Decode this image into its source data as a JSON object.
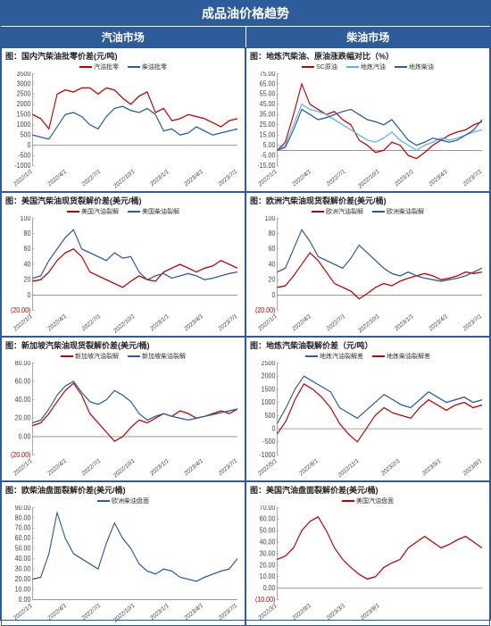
{
  "page": {
    "main_title": "成品油价格趋势",
    "left_header": "汽油市场",
    "right_header": "柴油市场"
  },
  "colors": {
    "frame": "#2e5c9a",
    "header_bg": "#2e5c9a",
    "header_fg": "#ffffff",
    "series_red": "#c00000",
    "series_blue": "#2e5c9a",
    "series_cyan": "#5eb3e4",
    "axis": "#888888",
    "grid": "#d9d9d9",
    "bg": "#ffffff"
  },
  "xaxes": {
    "std": [
      "2022/1/1",
      "2022/4/1",
      "2022/7/1",
      "2022/10/1",
      "2023/1/1",
      "2023/4/1",
      "2023/7/1"
    ],
    "r3": [
      "2022/5/1",
      "2022/8/1",
      "2022/11/1",
      "2023/2/1",
      "2023/5/1",
      "2023/8/1"
    ],
    "r5": [
      "2022/3/1",
      "2022/9/1",
      "2023/3/1",
      "2023/9/1",
      "",
      "",
      ""
    ],
    "l5": [
      "2022/1/1",
      "2022/4/1",
      "2022/7/1",
      "2022/10/1",
      "2023/1/1",
      "2023/4/1",
      "2023/7/1"
    ]
  },
  "charts": [
    {
      "id": "l1",
      "title": "图：国内汽柴油批零价差(元/吨)",
      "legend": [
        [
          "汽油批零",
          "red"
        ],
        [
          "柴油批零",
          "blue"
        ]
      ],
      "ylim": [
        -1000,
        3500
      ],
      "ytick_step": 500,
      "xkey": "std",
      "series": [
        [
          "red",
          [
            1500,
            1300,
            800,
            2500,
            2700,
            2600,
            2800,
            2800,
            2500,
            2800,
            2700,
            2300,
            2000,
            2400,
            2600,
            1600,
            1800,
            1200,
            1300,
            1500,
            1400,
            1300,
            1100,
            900,
            1200,
            1300
          ]
        ],
        [
          "blue",
          [
            500,
            400,
            300,
            900,
            1500,
            1600,
            1400,
            1000,
            800,
            1400,
            1800,
            1900,
            1700,
            1600,
            1800,
            1500,
            700,
            800,
            500,
            600,
            900,
            700,
            500,
            600,
            700,
            800
          ]
        ]
      ]
    },
    {
      "id": "r1",
      "title": "图：地炼汽柴油、原油涨跌幅对比（%）",
      "legend": [
        [
          "SC原油",
          "red"
        ],
        [
          "地炼汽油",
          "cyan"
        ],
        [
          "地炼柴油",
          "blue"
        ]
      ],
      "ylim": [
        -15,
        75
      ],
      "ytick_step": 10,
      "xkey": "std",
      "series": [
        [
          "red",
          [
            0,
            8,
            35,
            65,
            45,
            40,
            35,
            38,
            30,
            25,
            10,
            5,
            -2,
            0,
            8,
            5,
            -5,
            -8,
            -2,
            5,
            10,
            15,
            18,
            20,
            25,
            28
          ]
        ],
        [
          "cyan",
          [
            0,
            5,
            25,
            45,
            40,
            38,
            35,
            30,
            25,
            20,
            15,
            10,
            8,
            12,
            18,
            10,
            5,
            0,
            5,
            8,
            12,
            10,
            12,
            15,
            18,
            20
          ]
        ],
        [
          "blue",
          [
            0,
            3,
            20,
            40,
            35,
            30,
            32,
            35,
            38,
            40,
            35,
            30,
            28,
            25,
            30,
            20,
            10,
            5,
            8,
            12,
            10,
            8,
            10,
            15,
            20,
            30
          ]
        ]
      ]
    },
    {
      "id": "l2",
      "title": "图：美国汽柴油现货裂解价差(美元/桶)",
      "legend": [
        [
          "美国汽油裂解",
          "red"
        ],
        [
          "美国柴油裂解",
          "blue"
        ]
      ],
      "ylim": [
        -20,
        100
      ],
      "ytick_step": 20,
      "neg_tick": "(20.00)",
      "xkey": "std",
      "series": [
        [
          "red",
          [
            18,
            20,
            30,
            45,
            55,
            60,
            50,
            30,
            25,
            20,
            15,
            10,
            18,
            25,
            20,
            18,
            30,
            35,
            40,
            35,
            30,
            35,
            38,
            45,
            40,
            35
          ]
        ],
        [
          "blue",
          [
            22,
            25,
            45,
            60,
            75,
            85,
            60,
            55,
            50,
            45,
            55,
            48,
            50,
            30,
            20,
            25,
            28,
            22,
            25,
            28,
            25,
            20,
            22,
            25,
            28,
            30
          ]
        ]
      ]
    },
    {
      "id": "r2",
      "title": "图：欧洲汽柴油现货裂解价差(美元/桶)",
      "legend": [
        [
          "欧洲汽油裂解",
          "red"
        ],
        [
          "欧洲柴油裂解",
          "blue"
        ]
      ],
      "ylim": [
        -20,
        100
      ],
      "ytick_step": 20,
      "neg_tick": "(20.00)",
      "xkey": "std",
      "series": [
        [
          "red",
          [
            10,
            12,
            25,
            40,
            55,
            45,
            30,
            15,
            10,
            5,
            -5,
            2,
            10,
            15,
            12,
            18,
            22,
            25,
            28,
            25,
            20,
            22,
            25,
            30,
            28,
            30
          ]
        ],
        [
          "blue",
          [
            30,
            35,
            60,
            85,
            70,
            50,
            45,
            40,
            35,
            48,
            65,
            55,
            45,
            35,
            28,
            25,
            30,
            25,
            22,
            20,
            18,
            20,
            22,
            25,
            30,
            35
          ]
        ]
      ]
    },
    {
      "id": "l3",
      "title": "图：新加坡汽柴油现货裂解价差(美元/桶)",
      "legend": [
        [
          "新加坡汽油裂解",
          "red"
        ],
        [
          "新加坡柴油裂解",
          "blue"
        ]
      ],
      "ylim": [
        -20,
        80
      ],
      "ytick_step": 20,
      "neg_tick": "(20.00)",
      "xkey": "std",
      "series": [
        [
          "red",
          [
            12,
            15,
            25,
            38,
            50,
            58,
            45,
            25,
            15,
            5,
            -5,
            0,
            10,
            18,
            15,
            20,
            25,
            22,
            28,
            25,
            20,
            22,
            25,
            28,
            25,
            30
          ]
        ],
        [
          "blue",
          [
            15,
            18,
            30,
            45,
            55,
            60,
            48,
            38,
            35,
            40,
            50,
            45,
            38,
            25,
            18,
            22,
            25,
            22,
            20,
            18,
            20,
            22,
            24,
            26,
            28,
            30
          ]
        ]
      ]
    },
    {
      "id": "r3",
      "title": "图：地炼汽柴油裂解价差（元/吨）",
      "legend": [
        [
          "地炼汽油裂解差",
          "blue"
        ],
        [
          "地炼柴油裂解差",
          "red"
        ]
      ],
      "ylim": [
        -1000,
        2500
      ],
      "ytick_step": 500,
      "xkey": "r3",
      "series": [
        [
          "blue",
          [
            200,
            800,
            1500,
            2000,
            1800,
            1600,
            1400,
            800,
            600,
            400,
            700,
            1000,
            1300,
            1100,
            900,
            800,
            1100,
            1400,
            1200,
            1000,
            1100,
            1200,
            1000,
            1100
          ]
        ],
        [
          "red",
          [
            -200,
            300,
            1100,
            1700,
            1500,
            1200,
            800,
            200,
            -200,
            -500,
            0,
            500,
            800,
            600,
            500,
            400,
            800,
            1100,
            900,
            700,
            900,
            1000,
            800,
            900
          ]
        ]
      ]
    },
    {
      "id": "l4",
      "title": "图：欧柴油盘面裂解价差(美元/桶)",
      "legend": [
        [
          "欧洲柴油盘面",
          "blue"
        ]
      ],
      "ylim": [
        0,
        90
      ],
      "ytick_step": 10,
      "xkey": "l5",
      "series": [
        [
          "blue",
          [
            20,
            22,
            45,
            85,
            60,
            45,
            40,
            35,
            30,
            55,
            75,
            60,
            50,
            35,
            28,
            25,
            30,
            28,
            22,
            20,
            18,
            22,
            25,
            28,
            30,
            40
          ]
        ]
      ]
    },
    {
      "id": "r4",
      "title": "图：美国汽油盘面裂解价差(美元/桶)",
      "legend": [
        [
          "美国汽油盘面",
          "red"
        ]
      ],
      "ylim": [
        -10,
        70
      ],
      "ytick_step": 10,
      "neg_tick": "(10.00)",
      "xkey": "r5",
      "series": [
        [
          "red",
          [
            25,
            28,
            35,
            50,
            58,
            62,
            50,
            35,
            25,
            18,
            12,
            8,
            10,
            18,
            22,
            25,
            35,
            40,
            45,
            40,
            35,
            38,
            42,
            45,
            40,
            35
          ]
        ]
      ]
    },
    {
      "id": "l5",
      "title": "",
      "legend": [],
      "ylim": [
        0,
        1
      ],
      "ytick_step": 1,
      "xkey": "l5",
      "series": [],
      "hidden": true
    },
    {
      "id": "r5",
      "title": "",
      "legend": [],
      "ylim": [
        0,
        1
      ],
      "ytick_step": 1,
      "xkey": "r5",
      "series": [],
      "hidden": true
    }
  ]
}
